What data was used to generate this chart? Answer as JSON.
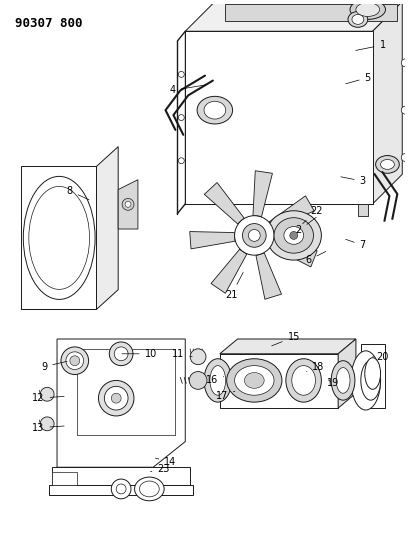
{
  "title": "90307 800",
  "bg_color": "#ffffff",
  "line_color": "#1a1a1a",
  "title_fontsize": 9,
  "label_fontsize": 7,
  "fig_width": 4.08,
  "fig_height": 5.33,
  "dpi": 100
}
